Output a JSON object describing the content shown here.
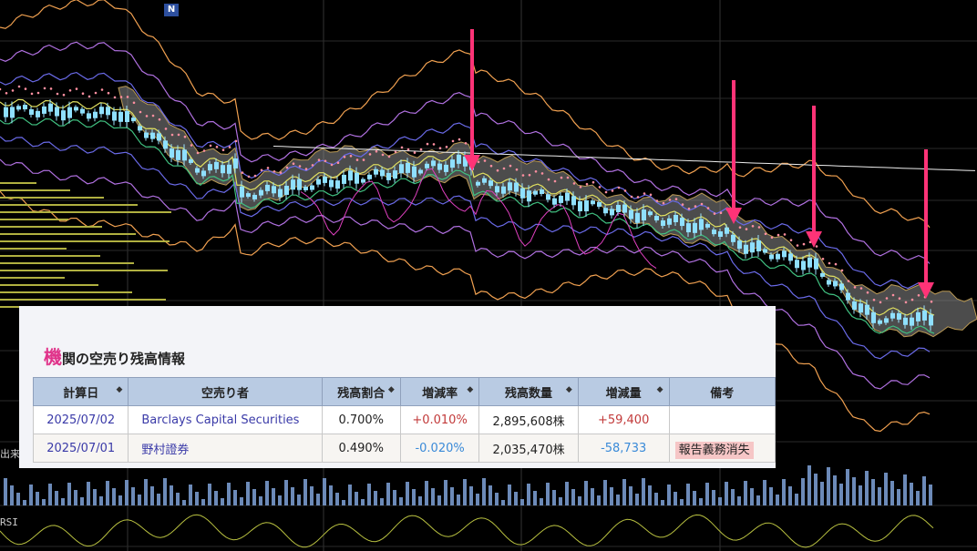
{
  "chart_data": {
    "type": "candlestick",
    "marker": "N",
    "side_labels": [
      "出来高",
      "RSI"
    ],
    "arrows": 4,
    "colors": {
      "arrow": "#ff3377",
      "bull": "#8fe0ff",
      "bear": "#8fe0ff",
      "cloud": "#8a8a8a"
    }
  },
  "panel": {
    "title_first": "機",
    "title_rest": "関の空売り残高情報",
    "columns": [
      "計算日",
      "空売り者",
      "残高割合",
      "増減率",
      "残高数量",
      "増減量",
      "備考"
    ],
    "rows": [
      {
        "date": "2025/07/02",
        "seller": "Barclays Capital Securities",
        "ratio": "0.700%",
        "rate": "+0.010%",
        "qty": "2,895,608株",
        "change": "+59,400",
        "note": ""
      },
      {
        "date": "2025/07/01",
        "seller": "野村證券",
        "ratio": "0.490%",
        "rate": "-0.020%",
        "qty": "2,035,470株",
        "change": "-58,733",
        "note": "報告義務消失"
      }
    ]
  }
}
